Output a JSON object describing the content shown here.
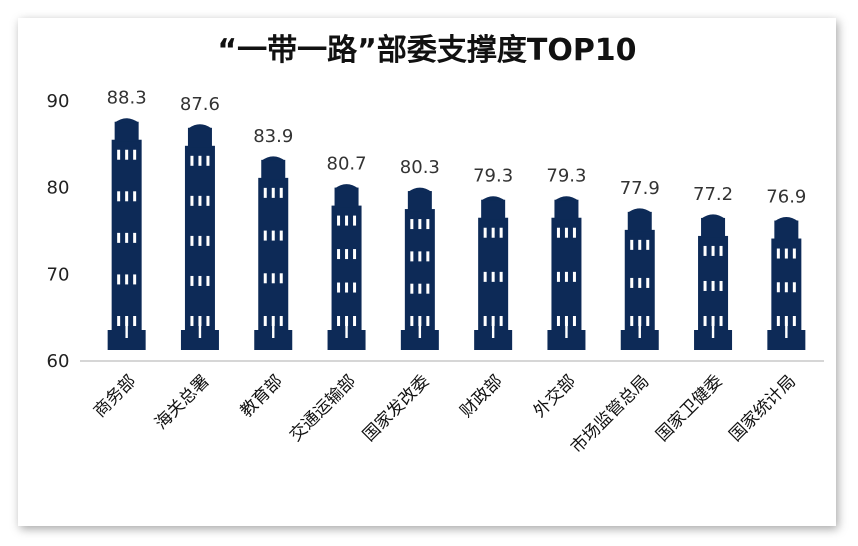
{
  "chart_data": {
    "type": "bar",
    "title": "“一带一路”部委支撑度TOP10",
    "categories": [
      "商务部",
      "海关总署",
      "教育部",
      "交通运输部",
      "国家发改委",
      "财政部",
      "外交部",
      "市场监管总局",
      "国家卫健委",
      "国家统计局"
    ],
    "values": [
      88.3,
      87.6,
      83.9,
      80.7,
      80.3,
      79.3,
      79.3,
      77.9,
      77.2,
      76.9
    ],
    "ylim": [
      60,
      90
    ],
    "yticks": [
      "60",
      "70",
      "80",
      "90"
    ],
    "grid": false,
    "legend": "none",
    "bar_style": "building",
    "colors": {
      "bar": "#0d2a57",
      "window": "#ffffff",
      "axis": "#c8c8c8"
    }
  }
}
